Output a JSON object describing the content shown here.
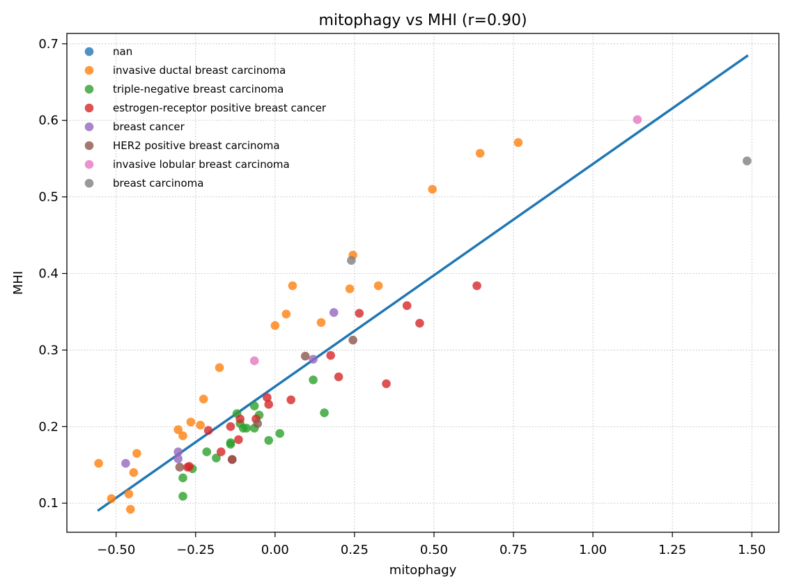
{
  "chart_data": {
    "type": "scatter",
    "title": "mitophagy vs MHI  (r=0.90)",
    "xlabel": "mitophagy",
    "ylabel": "MHI",
    "xlim": [
      -0.655,
      1.585
    ],
    "ylim": [
      0.062,
      0.7135
    ],
    "xticks": [
      {
        "value": -0.5,
        "label": "−0.50"
      },
      {
        "value": -0.25,
        "label": "−0.25"
      },
      {
        "value": 0.0,
        "label": "0.00"
      },
      {
        "value": 0.25,
        "label": "0.25"
      },
      {
        "value": 0.5,
        "label": "0.50"
      },
      {
        "value": 0.75,
        "label": "0.75"
      },
      {
        "value": 1.0,
        "label": "1.00"
      },
      {
        "value": 1.25,
        "label": "1.25"
      },
      {
        "value": 1.5,
        "label": "1.50"
      }
    ],
    "yticks": [
      {
        "value": 0.1,
        "label": "0.1"
      },
      {
        "value": 0.2,
        "label": "0.2"
      },
      {
        "value": 0.3,
        "label": "0.3"
      },
      {
        "value": 0.4,
        "label": "0.4"
      },
      {
        "value": 0.5,
        "label": "0.5"
      },
      {
        "value": 0.6,
        "label": "0.6"
      },
      {
        "value": 0.7,
        "label": "0.7"
      }
    ],
    "grid": true,
    "legend_position": "top-left",
    "fit_line": {
      "x": [
        -0.555,
        1.485
      ],
      "y": [
        0.091,
        0.684
      ],
      "color": "#1f77b4"
    },
    "series": [
      {
        "name": "nan",
        "color": "#1f77b4",
        "x": [],
        "y": []
      },
      {
        "name": "invasive ductal breast carcinoma",
        "color": "#ff7f0e",
        "x": [
          -0.555,
          -0.515,
          -0.46,
          -0.455,
          -0.445,
          -0.435,
          -0.305,
          -0.29,
          -0.265,
          -0.235,
          -0.225,
          -0.175,
          0.0,
          0.035,
          0.055,
          0.145,
          0.235,
          0.245,
          0.325,
          0.495,
          0.645,
          0.765
        ],
        "y": [
          0.152,
          0.106,
          0.112,
          0.092,
          0.14,
          0.165,
          0.196,
          0.188,
          0.206,
          0.202,
          0.236,
          0.277,
          0.332,
          0.347,
          0.384,
          0.336,
          0.38,
          0.424,
          0.384,
          0.51,
          0.557,
          0.571
        ]
      },
      {
        "name": "triple-negative breast carcinoma",
        "color": "#2ca02c",
        "x": [
          -0.29,
          -0.29,
          -0.26,
          -0.215,
          -0.185,
          -0.14,
          -0.14,
          -0.12,
          -0.11,
          -0.1,
          -0.09,
          -0.065,
          -0.065,
          -0.05,
          -0.02,
          0.015,
          0.12,
          0.155
        ],
        "y": [
          0.109,
          0.133,
          0.145,
          0.167,
          0.159,
          0.177,
          0.179,
          0.217,
          0.204,
          0.198,
          0.198,
          0.198,
          0.227,
          0.215,
          0.182,
          0.191,
          0.261,
          0.218
        ]
      },
      {
        "name": "estrogen-receptor positive breast cancer",
        "color": "#d62728",
        "x": [
          -0.275,
          -0.27,
          -0.21,
          -0.17,
          -0.14,
          -0.135,
          -0.115,
          -0.11,
          -0.06,
          -0.025,
          -0.02,
          0.05,
          0.175,
          0.2,
          0.265,
          0.35,
          0.415,
          0.455,
          0.635
        ],
        "y": [
          0.147,
          0.148,
          0.195,
          0.167,
          0.2,
          0.157,
          0.183,
          0.21,
          0.21,
          0.238,
          0.229,
          0.235,
          0.293,
          0.265,
          0.348,
          0.256,
          0.358,
          0.335,
          0.384
        ]
      },
      {
        "name": "breast cancer",
        "color": "#9467bd",
        "x": [
          -0.47,
          -0.305,
          -0.305,
          0.12,
          0.185
        ],
        "y": [
          0.152,
          0.158,
          0.167,
          0.288,
          0.349
        ]
      },
      {
        "name": "HER2 positive breast carcinoma",
        "color": "#8c564b",
        "x": [
          -0.3,
          -0.135,
          -0.055,
          0.095,
          0.245
        ],
        "y": [
          0.147,
          0.157,
          0.204,
          0.292,
          0.313
        ]
      },
      {
        "name": "invasive lobular breast carcinoma",
        "color": "#e377c2",
        "x": [
          -0.065,
          1.14
        ],
        "y": [
          0.286,
          0.601
        ]
      },
      {
        "name": "breast carcinoma",
        "color": "#7f7f7f",
        "x": [
          0.24,
          1.485
        ],
        "y": [
          0.417,
          0.547
        ]
      }
    ]
  }
}
